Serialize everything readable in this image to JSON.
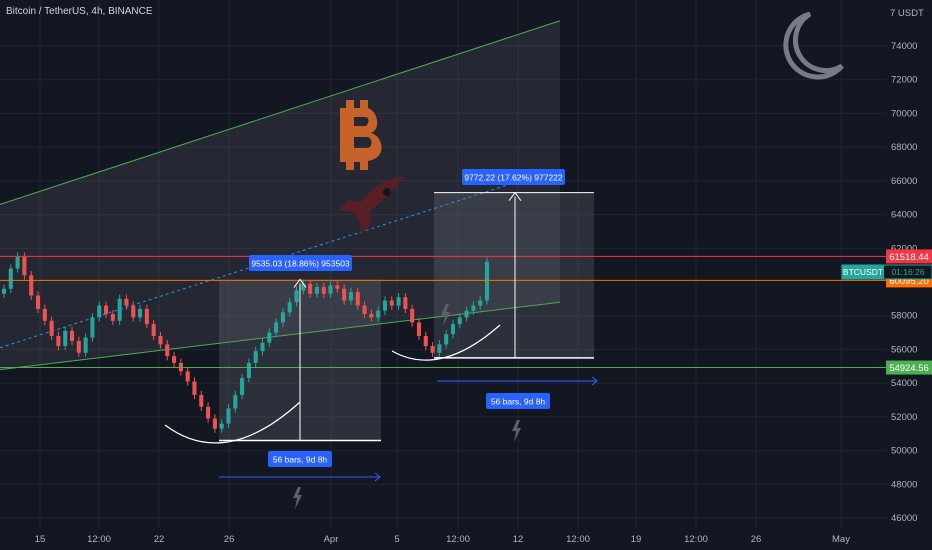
{
  "header": {
    "title": "Bitcoin / TetherUS, 4h, BINANCE"
  },
  "chart_data": {
    "type": "candlestick",
    "symbol": "BTCUSDT",
    "y_axis": {
      "ticks": [
        74000,
        72000,
        70000,
        68000,
        66000,
        64000,
        62000,
        58000,
        56000,
        54000,
        52000,
        50000,
        48000,
        46000
      ],
      "top_label": "7 USDT",
      "ylim": [
        45500,
        76000
      ]
    },
    "x_axis": {
      "ticks": [
        "15",
        "12:00",
        "22",
        "26",
        "Apr",
        "5",
        "12:00",
        "12",
        "12:00",
        "19",
        "12:00",
        "26",
        "May"
      ]
    },
    "price_labels": {
      "resistance": "61518.44",
      "current_symbol": "BTCUSDT",
      "countdown": "01:16:26",
      "level": "60095.20",
      "support": "54924.56"
    },
    "horizontal_levels": [
      61518.44,
      60095.2,
      54924.56
    ],
    "channel": {
      "upper_start": [
        0,
        64600
      ],
      "upper_end": [
        560,
        75500
      ],
      "lower_start": [
        0,
        54800
      ],
      "lower_end": [
        560,
        58800
      ]
    },
    "measurements": [
      {
        "label": "9535.03 (18.86%) 953503",
        "from": 50600,
        "to": 60150,
        "bars_label": "56 bars, 9d 8h"
      },
      {
        "label": "9772.22 (17.62%) 977222",
        "from": 55500,
        "to": 65300,
        "bars_label": "56 bars, 9d 8h"
      }
    ],
    "candles_close": [
      59600,
      60800,
      61500,
      60400,
      59200,
      58400,
      57700,
      56800,
      56200,
      57100,
      56500,
      55800,
      56700,
      57900,
      58600,
      58100,
      57700,
      59000,
      58600,
      57900,
      58400,
      57500,
      56800,
      56300,
      55600,
      55200,
      54700,
      54100,
      53300,
      52600,
      51900,
      51300,
      51600,
      52500,
      53300,
      54300,
      55200,
      55900,
      56400,
      57000,
      57600,
      58200,
      58800,
      59500,
      59900,
      59300,
      59700,
      59300,
      59800,
      59600,
      58900,
      59400,
      58600,
      58100,
      57900,
      58300,
      58900,
      58600,
      59100,
      58400,
      57600,
      56800,
      56200,
      55800,
      56300,
      56900,
      57500,
      57900,
      58300,
      58600,
      58900,
      61200
    ]
  },
  "colors": {
    "up": "#26a69a",
    "down": "#ef5350",
    "resistance": "#f23645",
    "level": "#ff6d00",
    "support": "#4caf50",
    "channel": "#4caf50",
    "label_blue": "#2962ff"
  },
  "icons": [
    "bitcoin-logo-icon",
    "rocket-icon",
    "moon-icon",
    "lightning-icon"
  ]
}
